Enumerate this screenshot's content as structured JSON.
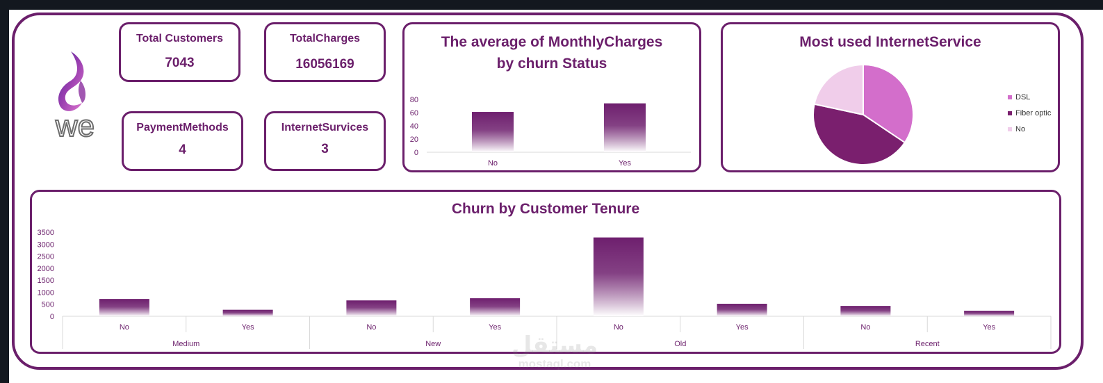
{
  "brand": {
    "logo_text": "we",
    "color": "#6b1f6b"
  },
  "kpis": {
    "total_customers": {
      "label": "Total Customers",
      "value": "7043"
    },
    "total_charges": {
      "label": "TotalCharges",
      "value": "16056169"
    },
    "payment_methods": {
      "label": "PaymentMethods",
      "value": "4"
    },
    "internet_services": {
      "label": "InternetSurvices",
      "value": "3"
    }
  },
  "charts": {
    "avg_monthly": {
      "title_line1": "The average of MonthlyCharges",
      "title_line2": "by churn Status"
    },
    "internet": {
      "title": "Most used InternetService"
    },
    "tenure": {
      "title": "Churn by Customer Tenure"
    }
  },
  "chart_data": [
    {
      "type": "bar",
      "title": "The average of MonthlyCharges by churn Status",
      "categories": [
        "No",
        "Yes"
      ],
      "values": [
        61,
        74
      ],
      "ylim": [
        0,
        80
      ],
      "yticks": [
        0,
        20,
        40,
        60,
        80
      ],
      "grid": false,
      "colors": {
        "top": "#6e1f6e",
        "bottom": "#ffffff"
      }
    },
    {
      "type": "pie",
      "title": "Most used InternetService",
      "labels": [
        "DSL",
        "Fiber optic",
        "No"
      ],
      "values": [
        34.4,
        44.0,
        21.6
      ],
      "colors": [
        "#d36ecb",
        "#7a1f6e",
        "#f0cdea"
      ],
      "legend": "right"
    },
    {
      "type": "bar",
      "title": "Churn by Customer Tenure",
      "groups": [
        "Medium",
        "New",
        "Old",
        "Recent"
      ],
      "categories": [
        "No",
        "Yes",
        "No",
        "Yes",
        "No",
        "Yes",
        "No",
        "Yes"
      ],
      "values": [
        720,
        270,
        660,
        750,
        3280,
        520,
        430,
        230
      ],
      "ylim": [
        0,
        3500
      ],
      "yticks": [
        0,
        500,
        1000,
        1500,
        2000,
        2500,
        3000,
        3500
      ],
      "grid": false,
      "colors": {
        "top": "#6e1f6e",
        "bottom": "#ffffff"
      }
    }
  ],
  "watermark": {
    "arabic": "مستقل",
    "latin": "mostaql.com"
  }
}
